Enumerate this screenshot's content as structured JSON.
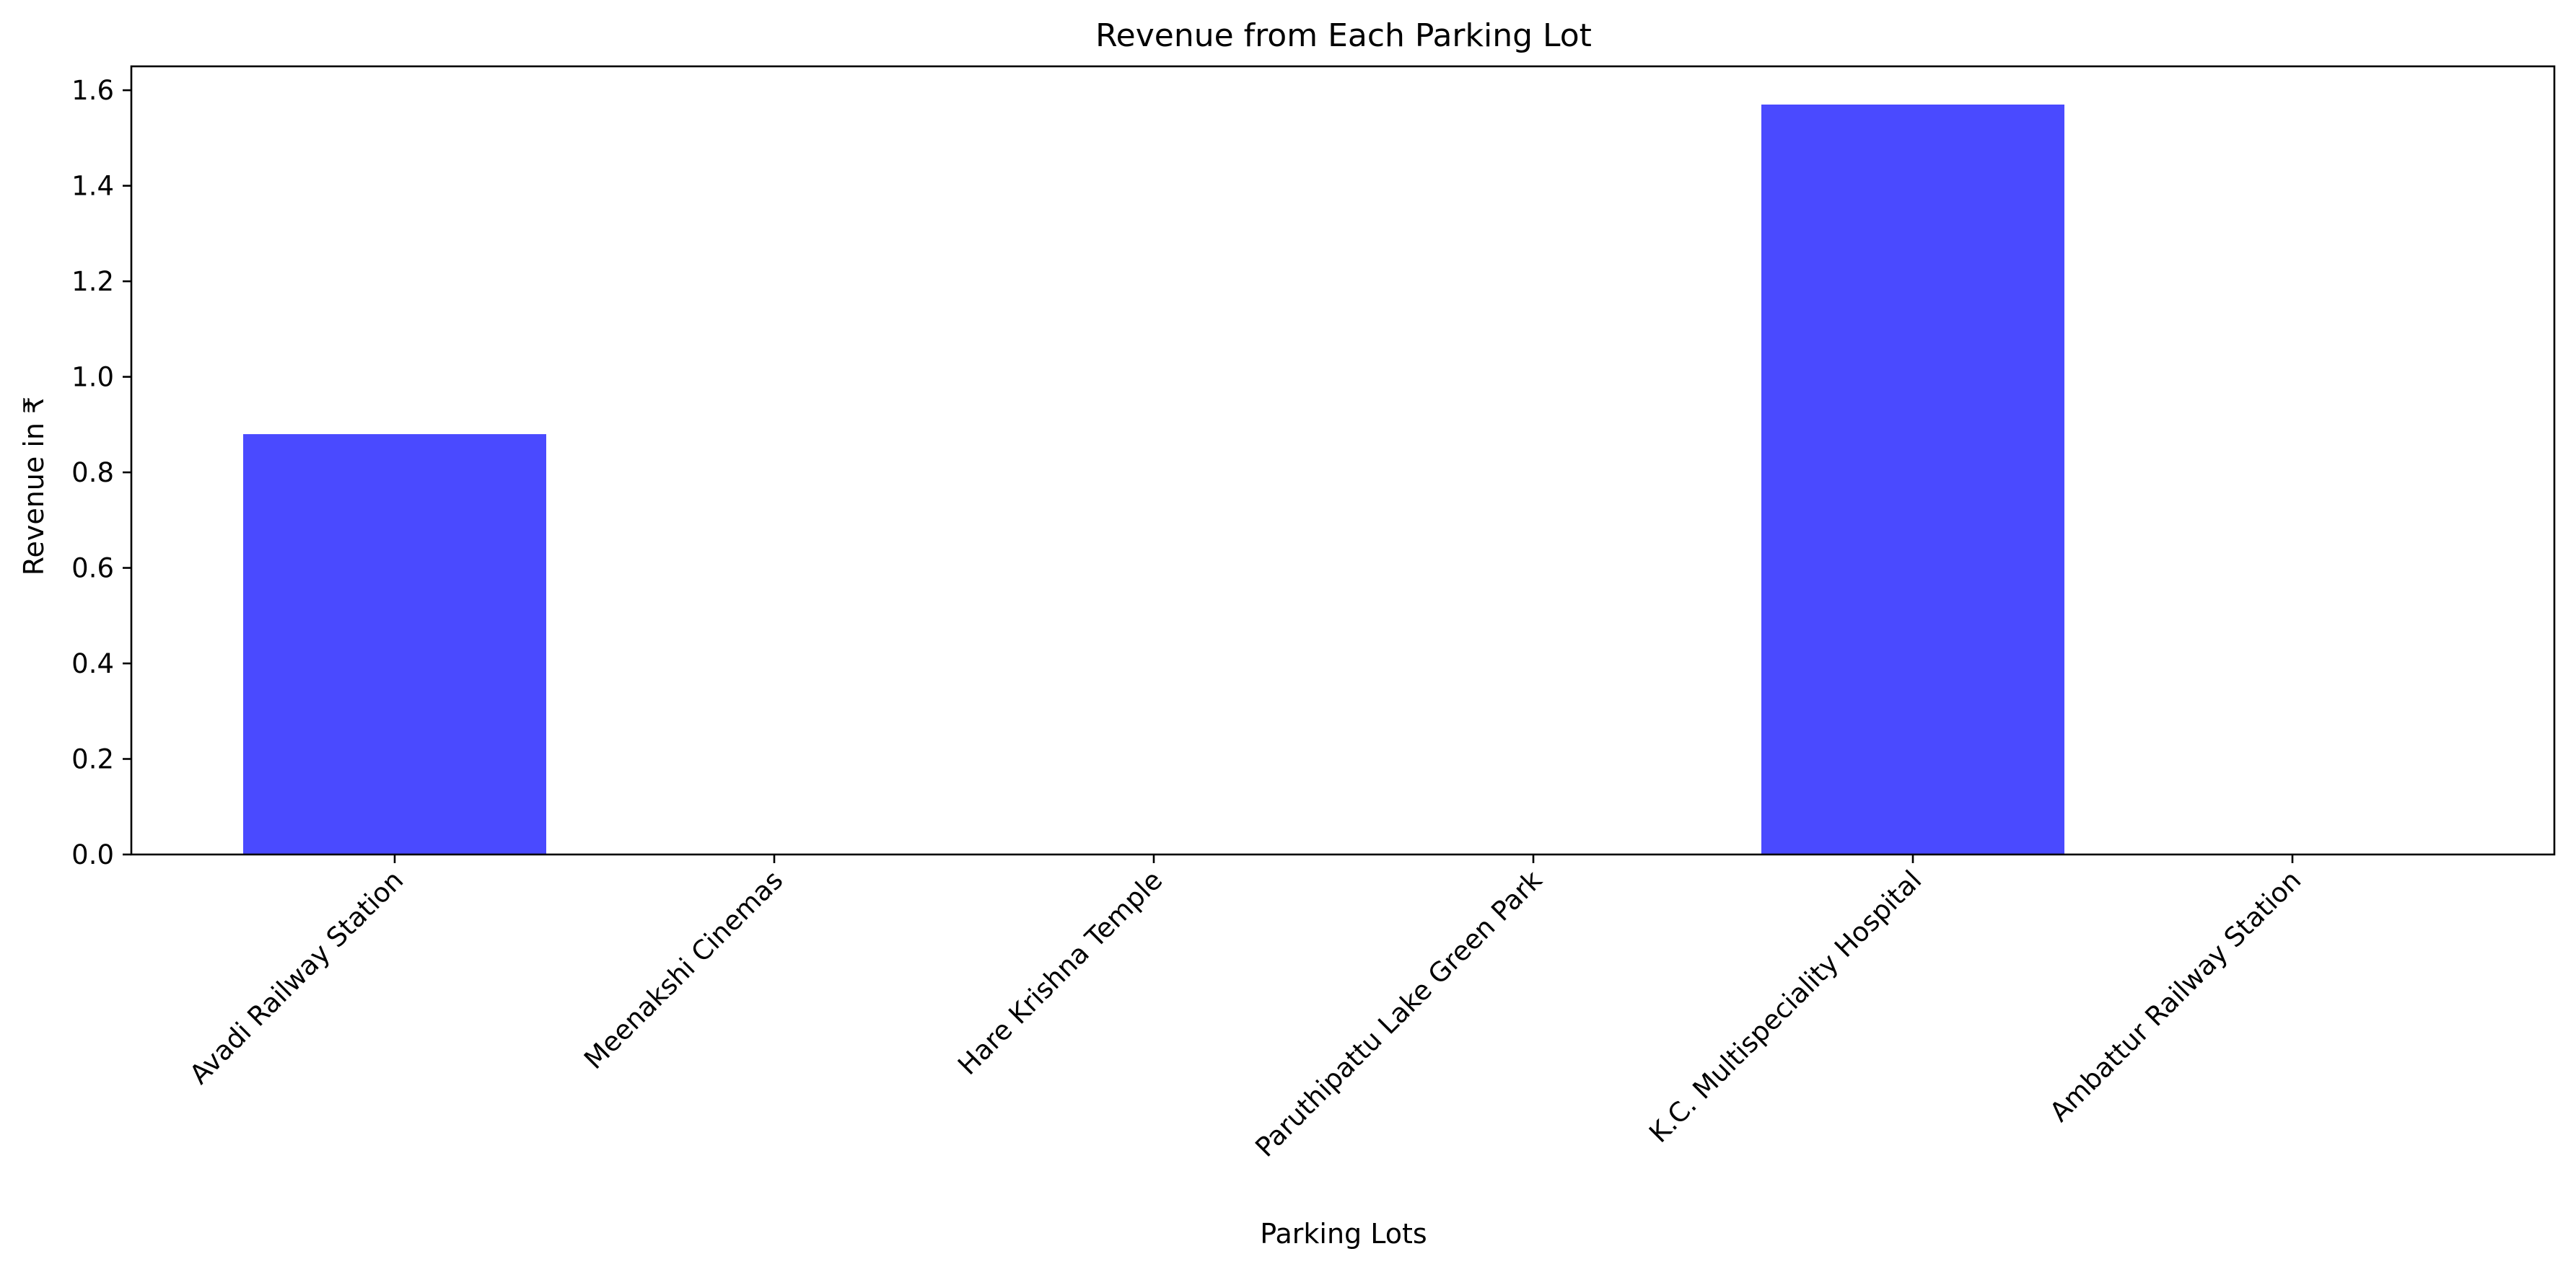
{
  "chart_data": {
    "type": "bar",
    "title": "Revenue from Each Parking Lot",
    "xlabel": "Parking Lots",
    "ylabel": "Revenue in ₹",
    "categories": [
      "Avadi Railway Station",
      "Meenakshi Cinemas",
      "Hare Krishna Temple",
      "Paruthipattu Lake Green Park",
      "K.C. Multispeciality Hospital",
      "Ambattur Railway Station"
    ],
    "values": [
      0.88,
      0,
      0,
      0,
      1.57,
      0
    ],
    "ylim": [
      0,
      1.65
    ],
    "yticks": [
      "0.0",
      "0.2",
      "0.4",
      "0.6",
      "0.8",
      "1.0",
      "1.2",
      "1.4",
      "1.6"
    ],
    "bar_color": "#4a4aff",
    "grid": false,
    "legend": "none"
  }
}
